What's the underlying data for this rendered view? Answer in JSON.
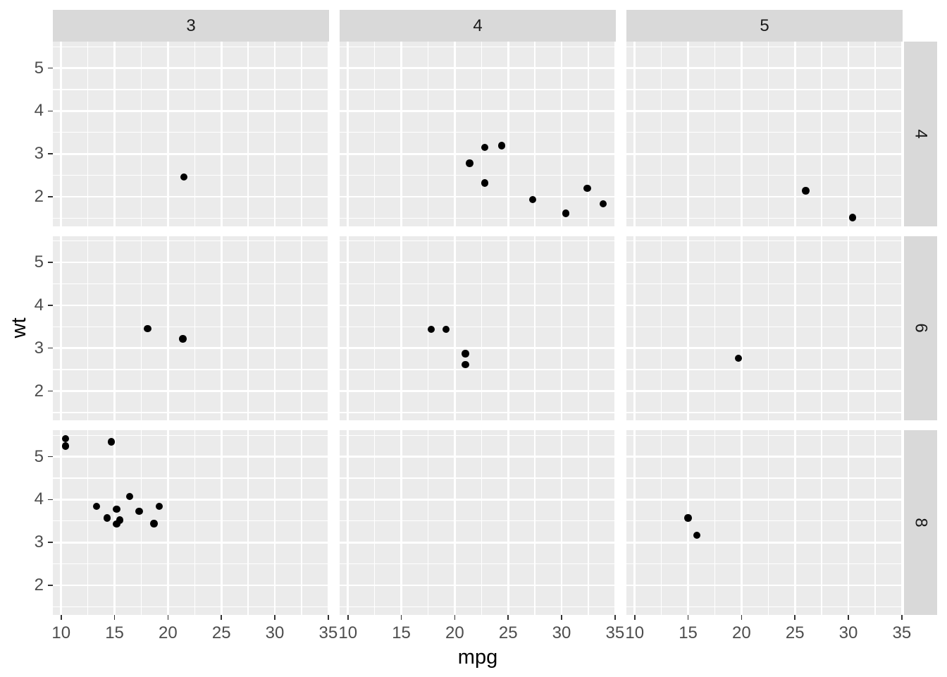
{
  "colors": {
    "background": "#FFFFFF",
    "panel_bg": "#EBEBEB",
    "strip_bg": "#D9D9D9",
    "grid": "#FFFFFF",
    "point": "#000000",
    "axis_text": "#4D4D4D",
    "strip_text": "#1A1A1A",
    "axis_title": "#000000",
    "tick_mark": "#333333"
  },
  "chart_data": {
    "type": "scatter",
    "title": "",
    "xlabel": "mpg",
    "ylabel": "wt",
    "x_ticks": [
      10,
      15,
      20,
      25,
      30,
      35
    ],
    "y_ticks": [
      2,
      3,
      4,
      5
    ],
    "x_minor": [
      12.5,
      17.5,
      22.5,
      27.5,
      32.5
    ],
    "y_minor": [
      1.5,
      2.5,
      3.5,
      4.5,
      5.5
    ],
    "xlim": [
      9.225,
      35.075
    ],
    "ylim": [
      1.3175,
      5.6195
    ],
    "grid": "on",
    "legend": "none",
    "facet_cols": [
      "3",
      "4",
      "5"
    ],
    "facet_rows": [
      "4",
      "6",
      "8"
    ],
    "cells": [
      {
        "col": 0,
        "row": 0,
        "points": [
          [
            21.5,
            2.465
          ]
        ]
      },
      {
        "col": 1,
        "row": 0,
        "points": [
          [
            22.8,
            2.32
          ],
          [
            24.4,
            3.19
          ],
          [
            22.8,
            3.15
          ],
          [
            32.4,
            2.2
          ],
          [
            30.4,
            1.615
          ],
          [
            33.9,
            1.835
          ],
          [
            27.3,
            1.935
          ],
          [
            21.4,
            2.78
          ]
        ]
      },
      {
        "col": 2,
        "row": 0,
        "points": [
          [
            26.0,
            2.14
          ],
          [
            30.4,
            1.513
          ]
        ]
      },
      {
        "col": 0,
        "row": 1,
        "points": [
          [
            21.4,
            3.215
          ],
          [
            18.1,
            3.46
          ]
        ]
      },
      {
        "col": 1,
        "row": 1,
        "points": [
          [
            21.0,
            2.62
          ],
          [
            21.0,
            2.875
          ],
          [
            19.2,
            3.44
          ],
          [
            17.8,
            3.44
          ]
        ]
      },
      {
        "col": 2,
        "row": 1,
        "points": [
          [
            19.7,
            2.77
          ]
        ]
      },
      {
        "col": 0,
        "row": 2,
        "points": [
          [
            18.7,
            3.44
          ],
          [
            14.3,
            3.57
          ],
          [
            16.4,
            4.07
          ],
          [
            17.3,
            3.73
          ],
          [
            15.2,
            3.78
          ],
          [
            10.4,
            5.25
          ],
          [
            10.4,
            5.424
          ],
          [
            14.7,
            5.345
          ],
          [
            15.5,
            3.52
          ],
          [
            15.2,
            3.435
          ],
          [
            13.3,
            3.84
          ],
          [
            19.2,
            3.845
          ]
        ]
      },
      {
        "col": 1,
        "row": 2,
        "points": []
      },
      {
        "col": 2,
        "row": 2,
        "points": [
          [
            15.8,
            3.17
          ],
          [
            15.0,
            3.57
          ]
        ]
      }
    ]
  }
}
